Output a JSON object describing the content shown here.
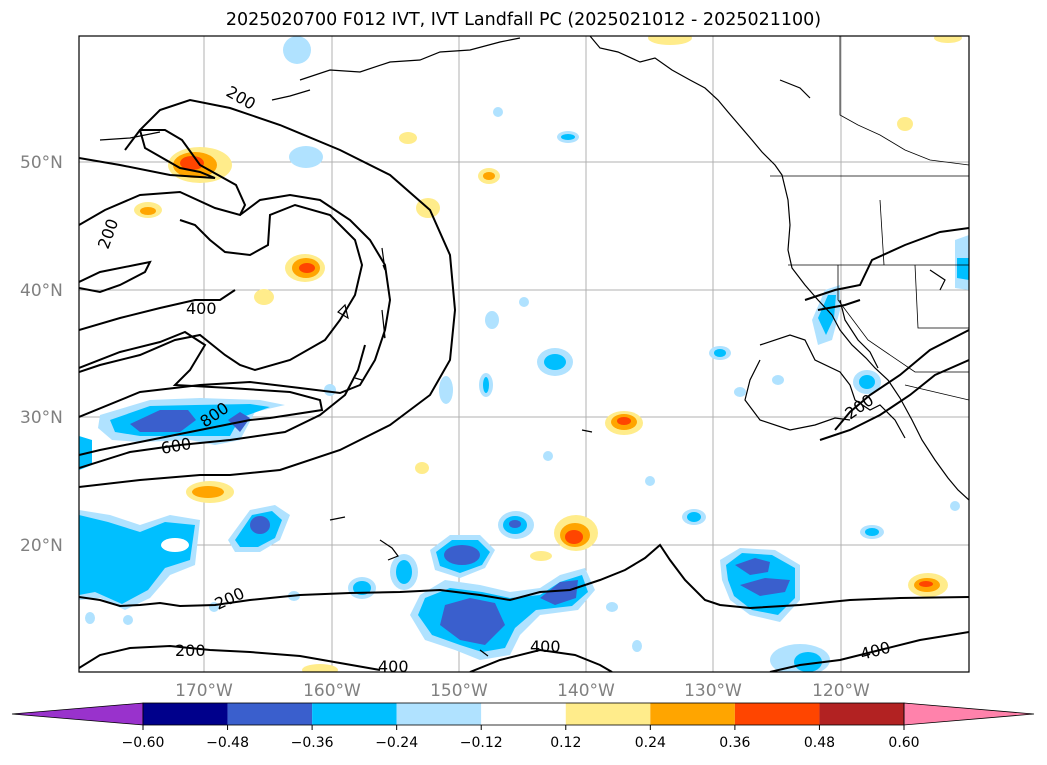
{
  "title": "2025020700 F012 IVT, IVT Landfall PC (2025021012 - 2025021100)",
  "map": {
    "lat_labels": [
      "50°N",
      "40°N",
      "30°N",
      "20°N"
    ],
    "lon_labels": [
      "170°W",
      "160°W",
      "150°W",
      "140°W",
      "130°W",
      "120°W"
    ],
    "contour_labels": [
      "200",
      "200",
      "400",
      "800",
      "600",
      "200",
      "200",
      "400",
      "400",
      "400",
      "400",
      "200"
    ]
  },
  "colorbar": {
    "ticks": [
      "−0.60",
      "−0.48",
      "−0.36",
      "−0.24",
      "−0.12",
      "0.12",
      "0.24",
      "0.36",
      "0.48",
      "0.60"
    ],
    "colors": {
      "under": "#9932cc",
      "bins": [
        "#00008b",
        "#3a5fcd",
        "#00bfff",
        "#b0e2ff",
        "#ffffff",
        "#ffec8b",
        "#ffa500",
        "#ff4500",
        "#b22222"
      ],
      "over": "#ff82ab"
    }
  }
}
